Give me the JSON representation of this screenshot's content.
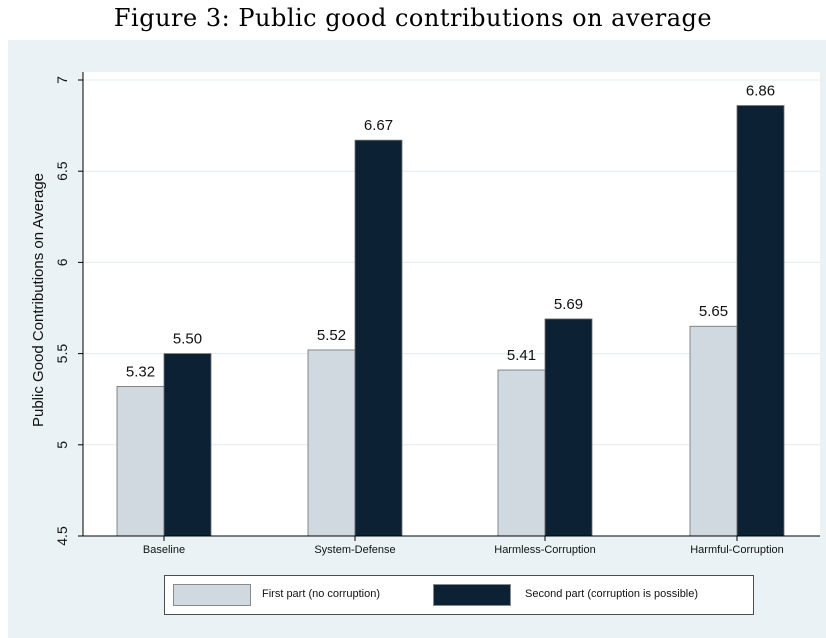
{
  "figure_title": "Figure 3: Public good contributions on average",
  "colors": {
    "outer_background": "#ebf2f6",
    "plot_background": "#ffffff",
    "series_first": "#d0d9e0",
    "series_second": "#0d2135",
    "gridline": "#e2ebf0"
  },
  "chart_data": {
    "type": "bar",
    "title": "",
    "xlabel": "",
    "ylabel": "Public Good Contributions on Average",
    "ylim": [
      4.5,
      7
    ],
    "yticks": [
      "4.5",
      "5",
      "5.5",
      "6",
      "6.5",
      "7"
    ],
    "grid": true,
    "legend_position": "bottom",
    "categories": [
      "Baseline",
      "System-Defense",
      "Harmless-Corruption",
      "Harmful-Corruption"
    ],
    "series": [
      {
        "name": "First part (no corruption)",
        "values": [
          5.32,
          5.52,
          5.41,
          5.65
        ],
        "labels": [
          "5.32",
          "5.52",
          "5.41",
          "5.65"
        ]
      },
      {
        "name": "Second part (corruption is possible)",
        "values": [
          5.5,
          6.67,
          5.69,
          6.86
        ],
        "labels": [
          "5.50",
          "6.67",
          "5.69",
          "6.86"
        ]
      }
    ]
  }
}
